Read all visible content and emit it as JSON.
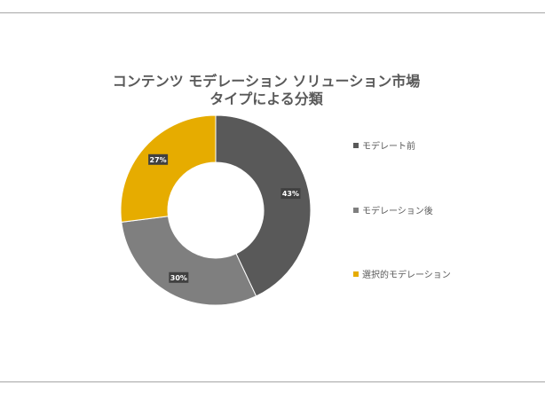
{
  "chart_data": {
    "type": "pie",
    "donut": true,
    "title_lines": [
      "コンテンツ モデレーション ソリューション市場",
      "タイプによる分類"
    ],
    "categories": [
      "モデレート前",
      "モデレーション後",
      "選択的モデレーション"
    ],
    "values": [
      43,
      30,
      27
    ],
    "data_labels": [
      "43%",
      "30%",
      "27%"
    ],
    "colors": [
      "#595959",
      "#7f7f7f",
      "#e6ac00"
    ],
    "legend_position": "right"
  },
  "colors": {
    "title": "#595959",
    "legend_text": "#595959",
    "label_box": "#404040",
    "rule": "#a6a6a6"
  }
}
